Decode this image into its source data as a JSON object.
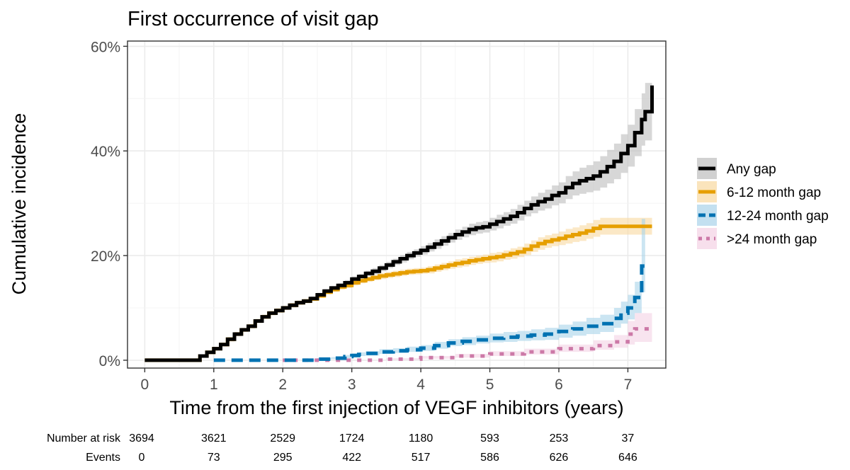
{
  "chart_data": {
    "type": "line",
    "title": "First occurrence of visit gap",
    "xlabel": "Time from the first injection of VEGF inhibitors (years)",
    "ylabel": "Cumulative incidence",
    "xlim": [
      -0.25,
      7.55
    ],
    "ylim": [
      -0.015,
      0.61
    ],
    "x_ticks": [
      0,
      1,
      2,
      3,
      4,
      5,
      6,
      7
    ],
    "y_ticks": [
      0,
      0.2,
      0.4,
      0.6
    ],
    "y_tick_labels": [
      "0%",
      "20%",
      "40%",
      "60%"
    ],
    "grid": true,
    "legend_position": "right",
    "series": [
      {
        "name": "Any gap",
        "color": "#000000",
        "fill": "#bdbdbd",
        "dash": "solid",
        "x": [
          0,
          0.75,
          0.8,
          0.9,
          1.0,
          1.1,
          1.2,
          1.3,
          1.4,
          1.5,
          1.6,
          1.7,
          1.8,
          1.9,
          2.0,
          2.1,
          2.2,
          2.3,
          2.4,
          2.5,
          2.6,
          2.7,
          2.8,
          2.9,
          3.0,
          3.1,
          3.2,
          3.3,
          3.4,
          3.5,
          3.6,
          3.7,
          3.8,
          3.9,
          4.0,
          4.1,
          4.2,
          4.3,
          4.4,
          4.5,
          4.6,
          4.7,
          4.8,
          4.9,
          5.0,
          5.1,
          5.2,
          5.3,
          5.4,
          5.5,
          5.6,
          5.7,
          5.8,
          5.9,
          6.0,
          6.1,
          6.2,
          6.3,
          6.4,
          6.5,
          6.6,
          6.7,
          6.8,
          6.9,
          7.0,
          7.1,
          7.2,
          7.25,
          7.35
        ],
        "y": [
          0,
          0,
          0.008,
          0.015,
          0.022,
          0.03,
          0.04,
          0.05,
          0.058,
          0.065,
          0.075,
          0.083,
          0.09,
          0.095,
          0.1,
          0.105,
          0.11,
          0.113,
          0.118,
          0.125,
          0.132,
          0.138,
          0.143,
          0.148,
          0.155,
          0.16,
          0.166,
          0.17,
          0.176,
          0.182,
          0.188,
          0.194,
          0.2,
          0.205,
          0.21,
          0.216,
          0.222,
          0.228,
          0.234,
          0.24,
          0.245,
          0.25,
          0.253,
          0.255,
          0.26,
          0.265,
          0.27,
          0.275,
          0.282,
          0.29,
          0.297,
          0.303,
          0.308,
          0.315,
          0.32,
          0.33,
          0.338,
          0.343,
          0.347,
          0.352,
          0.36,
          0.37,
          0.38,
          0.395,
          0.41,
          0.435,
          0.46,
          0.475,
          0.525
        ],
        "lower": [
          0,
          0,
          0.005,
          0.012,
          0.019,
          0.027,
          0.036,
          0.046,
          0.054,
          0.061,
          0.071,
          0.079,
          0.086,
          0.091,
          0.096,
          0.101,
          0.106,
          0.109,
          0.114,
          0.121,
          0.128,
          0.134,
          0.139,
          0.143,
          0.15,
          0.155,
          0.161,
          0.164,
          0.17,
          0.176,
          0.182,
          0.187,
          0.193,
          0.198,
          0.202,
          0.208,
          0.213,
          0.219,
          0.225,
          0.23,
          0.235,
          0.239,
          0.242,
          0.244,
          0.248,
          0.252,
          0.257,
          0.261,
          0.267,
          0.275,
          0.281,
          0.286,
          0.29,
          0.296,
          0.3,
          0.308,
          0.315,
          0.318,
          0.321,
          0.324,
          0.33,
          0.338,
          0.346,
          0.358,
          0.37,
          0.39,
          0.41,
          0.42,
          0.46
        ],
        "upper": [
          0,
          0,
          0.011,
          0.018,
          0.025,
          0.033,
          0.044,
          0.054,
          0.062,
          0.069,
          0.079,
          0.087,
          0.094,
          0.099,
          0.104,
          0.109,
          0.114,
          0.117,
          0.122,
          0.129,
          0.136,
          0.142,
          0.147,
          0.153,
          0.16,
          0.165,
          0.171,
          0.176,
          0.182,
          0.188,
          0.194,
          0.201,
          0.207,
          0.212,
          0.218,
          0.224,
          0.231,
          0.237,
          0.243,
          0.25,
          0.255,
          0.261,
          0.264,
          0.266,
          0.272,
          0.278,
          0.283,
          0.289,
          0.297,
          0.305,
          0.313,
          0.32,
          0.326,
          0.334,
          0.34,
          0.352,
          0.361,
          0.368,
          0.373,
          0.38,
          0.39,
          0.402,
          0.414,
          0.432,
          0.45,
          0.48,
          0.51,
          0.53,
          0.55
        ]
      },
      {
        "name": "6-12 month gap",
        "color": "#e69f00",
        "fill": "#f8d9a0",
        "dash": "solid",
        "x": [
          0,
          0.75,
          0.8,
          0.9,
          1.0,
          1.1,
          1.2,
          1.3,
          1.4,
          1.5,
          1.6,
          1.7,
          1.8,
          1.9,
          2.0,
          2.1,
          2.2,
          2.3,
          2.4,
          2.5,
          2.6,
          2.7,
          2.8,
          2.9,
          3.0,
          3.1,
          3.2,
          3.3,
          3.4,
          3.5,
          3.6,
          3.7,
          3.8,
          3.9,
          4.0,
          4.1,
          4.2,
          4.3,
          4.4,
          4.5,
          4.6,
          4.7,
          4.8,
          4.9,
          5.0,
          5.1,
          5.2,
          5.3,
          5.4,
          5.5,
          5.6,
          5.7,
          5.8,
          5.9,
          6.0,
          6.1,
          6.2,
          6.3,
          6.4,
          6.5,
          6.6,
          7.0,
          7.35
        ],
        "y": [
          0,
          0,
          0.008,
          0.015,
          0.022,
          0.03,
          0.04,
          0.05,
          0.058,
          0.065,
          0.075,
          0.083,
          0.09,
          0.095,
          0.1,
          0.105,
          0.11,
          0.113,
          0.117,
          0.123,
          0.13,
          0.135,
          0.14,
          0.143,
          0.148,
          0.152,
          0.155,
          0.158,
          0.161,
          0.163,
          0.165,
          0.167,
          0.169,
          0.17,
          0.171,
          0.173,
          0.176,
          0.179,
          0.182,
          0.185,
          0.187,
          0.19,
          0.192,
          0.194,
          0.196,
          0.198,
          0.201,
          0.204,
          0.207,
          0.212,
          0.218,
          0.223,
          0.227,
          0.23,
          0.233,
          0.237,
          0.24,
          0.243,
          0.247,
          0.252,
          0.256,
          0.256,
          0.256
        ],
        "lower": [
          0,
          0,
          0.005,
          0.012,
          0.019,
          0.027,
          0.036,
          0.046,
          0.054,
          0.061,
          0.071,
          0.079,
          0.086,
          0.091,
          0.096,
          0.101,
          0.106,
          0.109,
          0.113,
          0.119,
          0.126,
          0.131,
          0.135,
          0.138,
          0.143,
          0.147,
          0.15,
          0.153,
          0.155,
          0.157,
          0.159,
          0.161,
          0.163,
          0.164,
          0.165,
          0.166,
          0.169,
          0.172,
          0.175,
          0.177,
          0.179,
          0.182,
          0.184,
          0.186,
          0.187,
          0.189,
          0.192,
          0.194,
          0.197,
          0.201,
          0.207,
          0.211,
          0.215,
          0.218,
          0.22,
          0.223,
          0.226,
          0.228,
          0.232,
          0.236,
          0.24,
          0.24,
          0.24
        ],
        "upper": [
          0,
          0,
          0.011,
          0.018,
          0.025,
          0.033,
          0.044,
          0.054,
          0.062,
          0.069,
          0.079,
          0.087,
          0.094,
          0.099,
          0.104,
          0.109,
          0.114,
          0.117,
          0.121,
          0.127,
          0.134,
          0.139,
          0.145,
          0.148,
          0.153,
          0.157,
          0.16,
          0.163,
          0.167,
          0.169,
          0.171,
          0.173,
          0.175,
          0.176,
          0.177,
          0.18,
          0.183,
          0.186,
          0.189,
          0.193,
          0.195,
          0.198,
          0.2,
          0.202,
          0.205,
          0.207,
          0.21,
          0.214,
          0.217,
          0.223,
          0.229,
          0.235,
          0.239,
          0.242,
          0.246,
          0.251,
          0.254,
          0.258,
          0.262,
          0.268,
          0.272,
          0.272,
          0.272
        ]
      },
      {
        "name": "12-24 month gap",
        "color": "#0072b2",
        "fill": "#a9d3ea",
        "dash": "dashed",
        "x": [
          1.0,
          2.0,
          2.5,
          2.7,
          2.9,
          3.0,
          3.1,
          3.2,
          3.4,
          3.6,
          3.8,
          4.0,
          4.2,
          4.4,
          4.6,
          4.8,
          5.0,
          5.2,
          5.4,
          5.6,
          5.8,
          6.0,
          6.2,
          6.4,
          6.6,
          6.8,
          6.9,
          7.0,
          7.1,
          7.2,
          7.25
        ],
        "y": [
          0,
          0,
          0.002,
          0.004,
          0.007,
          0.009,
          0.011,
          0.013,
          0.016,
          0.018,
          0.02,
          0.023,
          0.028,
          0.033,
          0.036,
          0.039,
          0.042,
          0.044,
          0.046,
          0.048,
          0.05,
          0.055,
          0.06,
          0.065,
          0.07,
          0.08,
          0.09,
          0.1,
          0.12,
          0.18,
          0.19
        ],
        "lower": [
          0,
          0,
          0.001,
          0.002,
          0.004,
          0.006,
          0.008,
          0.009,
          0.012,
          0.014,
          0.016,
          0.018,
          0.022,
          0.027,
          0.029,
          0.032,
          0.034,
          0.035,
          0.037,
          0.038,
          0.039,
          0.043,
          0.047,
          0.05,
          0.054,
          0.062,
          0.07,
          0.078,
          0.09,
          0.13,
          0.14
        ],
        "upper": [
          0,
          0,
          0.004,
          0.006,
          0.01,
          0.013,
          0.015,
          0.017,
          0.021,
          0.023,
          0.026,
          0.029,
          0.035,
          0.04,
          0.044,
          0.047,
          0.051,
          0.054,
          0.056,
          0.059,
          0.062,
          0.068,
          0.074,
          0.081,
          0.087,
          0.1,
          0.112,
          0.125,
          0.15,
          0.27,
          0.33
        ]
      },
      {
        "name": ">24 month gap",
        "color": "#cc79a7",
        "fill": "#f3d2e4",
        "dash": "dotted",
        "x": [
          2.0,
          3.0,
          3.5,
          4.0,
          4.5,
          5.0,
          5.5,
          6.0,
          6.5,
          6.8,
          7.0,
          7.1,
          7.35
        ],
        "y": [
          0,
          0,
          0.002,
          0.005,
          0.008,
          0.012,
          0.016,
          0.022,
          0.028,
          0.035,
          0.05,
          0.06,
          0.065
        ],
        "lower": [
          0,
          0,
          0.001,
          0.003,
          0.005,
          0.008,
          0.011,
          0.016,
          0.02,
          0.024,
          0.03,
          0.035,
          0.035
        ],
        "upper": [
          0,
          0,
          0.004,
          0.008,
          0.012,
          0.017,
          0.022,
          0.03,
          0.038,
          0.048,
          0.075,
          0.09,
          0.105
        ]
      }
    ],
    "risk_table": {
      "rows": [
        {
          "label": "Number at risk",
          "values": [
            "3694",
            "3621",
            "2529",
            "1724",
            "1180",
            "593",
            "253",
            "37"
          ]
        },
        {
          "label": "Events",
          "values": [
            "0",
            "73",
            "295",
            "422",
            "517",
            "586",
            "626",
            "646"
          ]
        }
      ]
    }
  }
}
